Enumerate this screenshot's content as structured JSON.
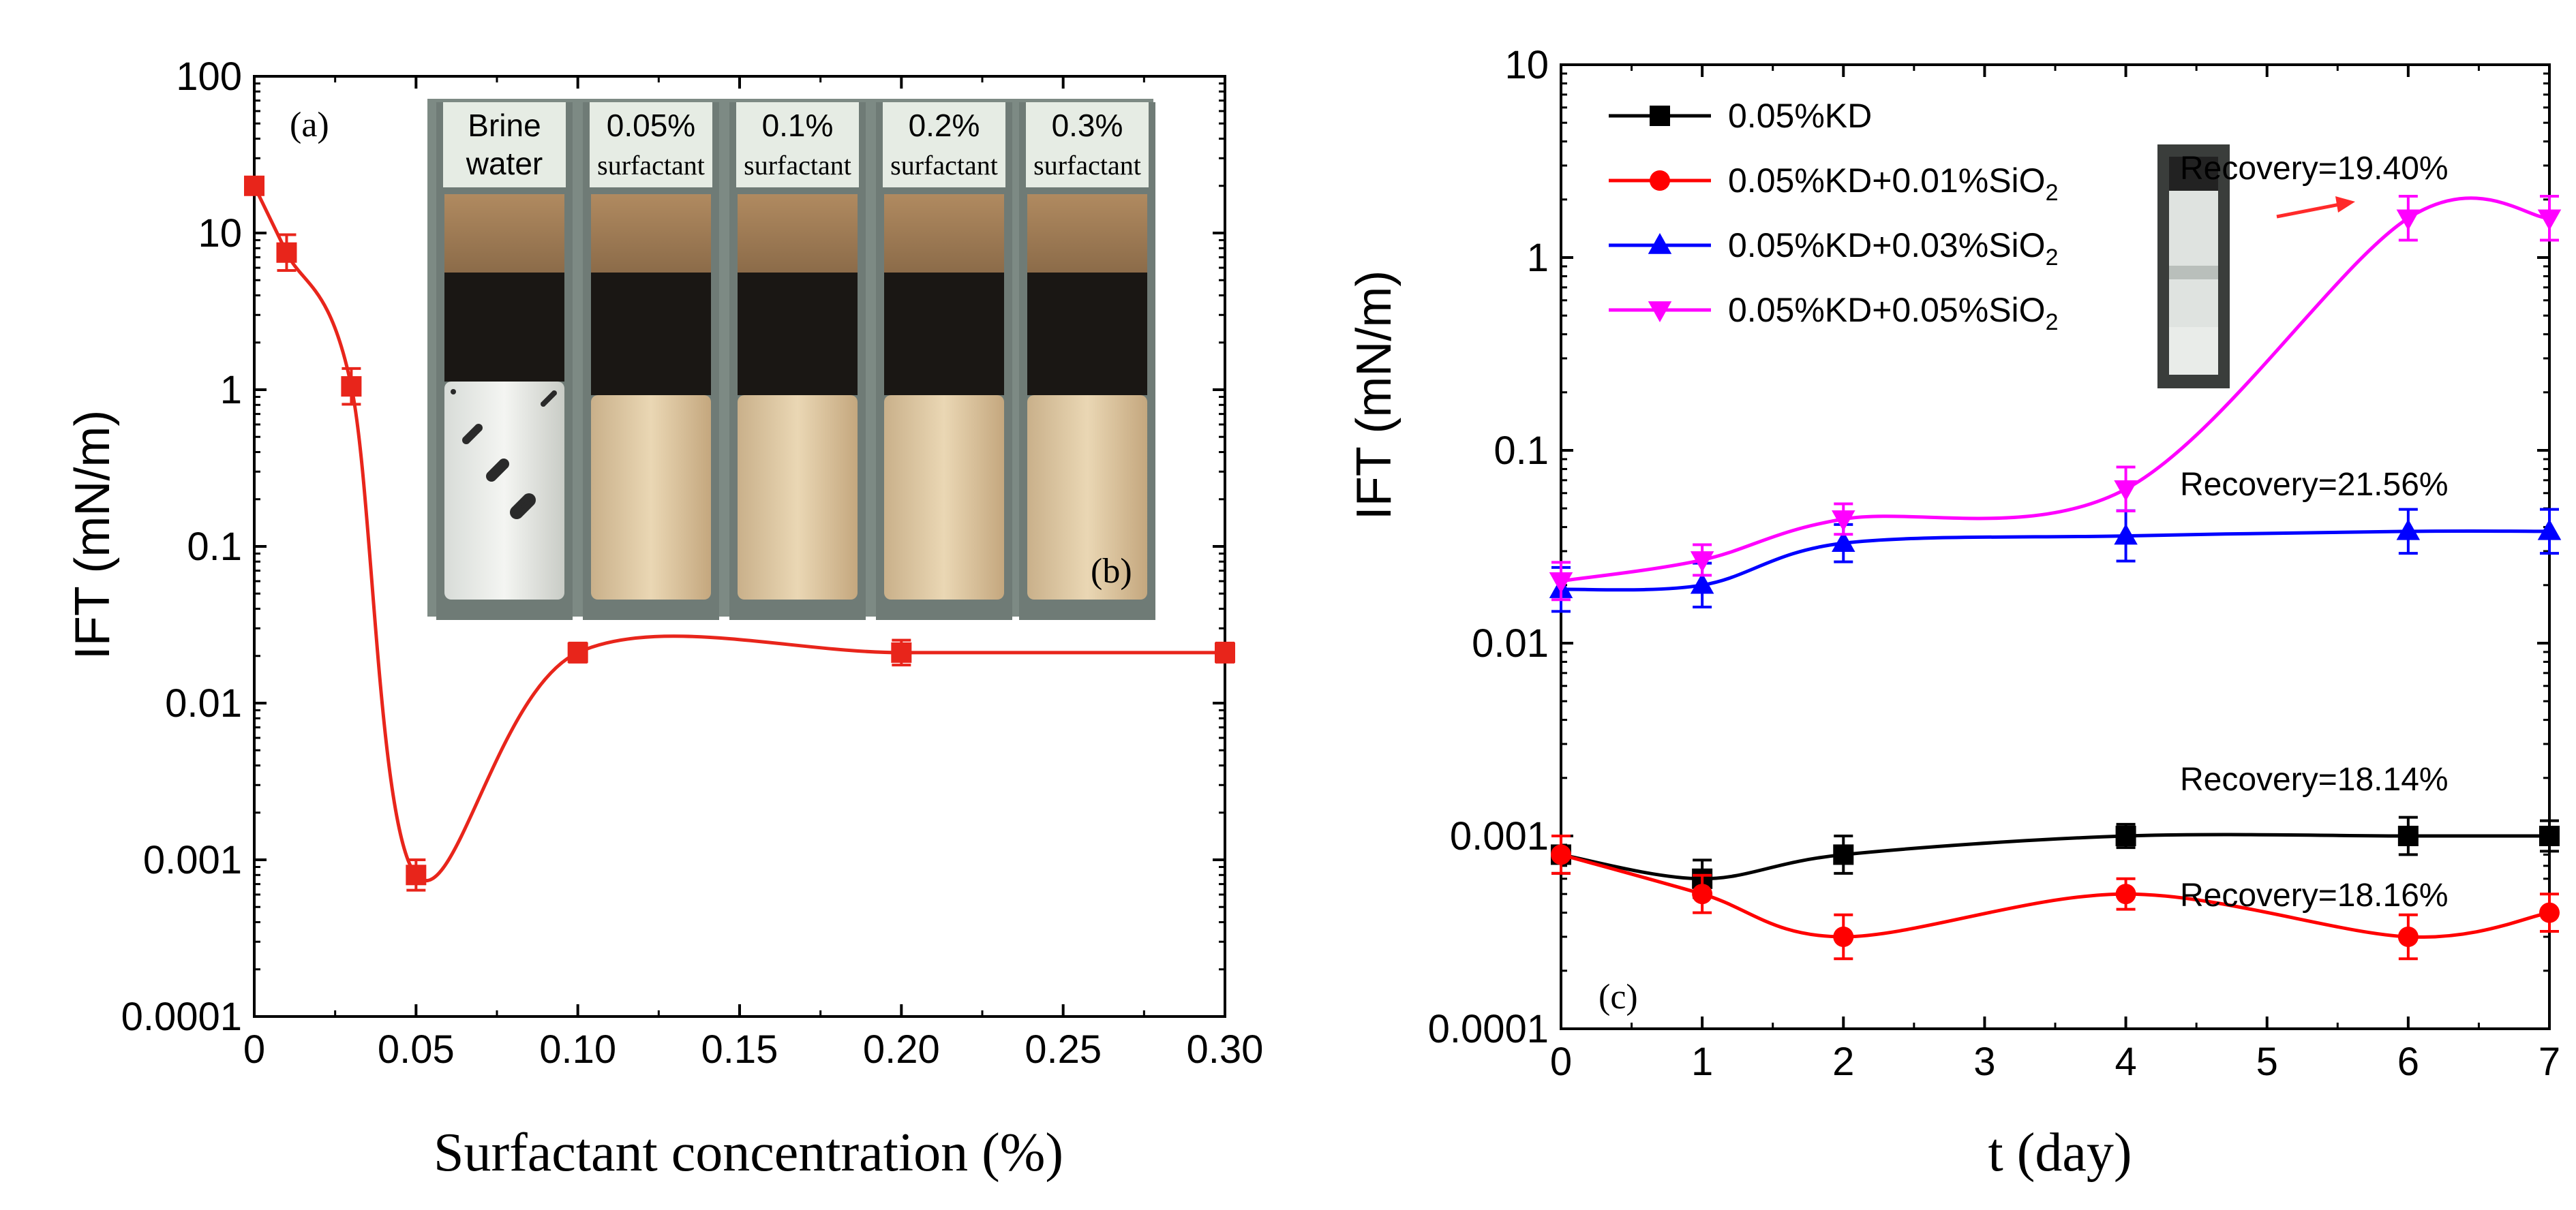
{
  "chart_data": [
    {
      "panel": "a",
      "type": "line",
      "panel_label": "(a)",
      "xlabel": "Surfactant concentration (%)",
      "ylabel": "IFT (mN/m)",
      "xlim": [
        0,
        0.3
      ],
      "ylim": [
        0.0001,
        100
      ],
      "yscale": "log",
      "x_ticks": [
        "0",
        "0.05",
        "0.10",
        "0.15",
        "0.20",
        "0.25",
        "0.30"
      ],
      "x_tick_values": [
        0,
        0.05,
        0.1,
        0.15,
        0.2,
        0.25,
        0.3
      ],
      "y_ticks": [
        "0.0001",
        "0.001",
        "0.01",
        "0.1",
        "1",
        "10",
        "100"
      ],
      "y_tick_values": [
        0.0001,
        0.001,
        0.01,
        0.1,
        1,
        10,
        100
      ],
      "series": [
        {
          "name": "IFT",
          "color": "#e8251b",
          "marker": "square",
          "x": [
            0,
            0.01,
            0.03,
            0.05,
            0.1,
            0.2,
            0.3
          ],
          "values": [
            20,
            7.5,
            1.05,
            0.0008,
            0.021,
            0.021,
            0.021
          ],
          "err_factor": [
            1.12,
            1.3,
            1.3,
            1.25,
            1.15,
            1.2,
            1.15
          ]
        }
      ],
      "inset": {
        "panel_label": "(b)",
        "vials": [
          {
            "line1": "Brine",
            "line2": "water"
          },
          {
            "line1": "0.05%",
            "line2": "surfactant"
          },
          {
            "line1": "0.1%",
            "line2": "surfactant"
          },
          {
            "line1": "0.2%",
            "line2": "surfactant"
          },
          {
            "line1": "0.3%",
            "line2": "surfactant"
          }
        ]
      }
    },
    {
      "panel": "c",
      "type": "line",
      "panel_label": "(c)",
      "xlabel": "t (day)",
      "ylabel": "IFT (mN/m)",
      "xlim": [
        0,
        7
      ],
      "ylim": [
        0.0001,
        10
      ],
      "yscale": "log",
      "x_ticks": [
        "0",
        "1",
        "2",
        "3",
        "4",
        "5",
        "6",
        "7"
      ],
      "x_tick_values": [
        0,
        1,
        2,
        3,
        4,
        5,
        6,
        7
      ],
      "y_ticks": [
        "0.0001",
        "0.001",
        "0.01",
        "0.1",
        "1",
        "10"
      ],
      "y_tick_values": [
        0.0001,
        0.001,
        0.01,
        0.1,
        1,
        10
      ],
      "legend_position": "top-left",
      "series": [
        {
          "name": "0.05%KD",
          "color": "#000000",
          "marker": "square",
          "x": [
            0,
            1,
            2,
            4,
            6,
            7
          ],
          "values": [
            0.0008,
            0.0006,
            0.0008,
            0.001,
            0.001,
            0.001
          ],
          "err_factor": [
            1.25,
            1.25,
            1.25,
            1.15,
            1.25,
            1.2
          ]
        },
        {
          "name": "0.05%KD+0.01%SiO",
          "name_sub": "2",
          "color": "#ff0000",
          "marker": "circle",
          "x": [
            0,
            1,
            2,
            4,
            6,
            7
          ],
          "values": [
            0.0008,
            0.0005,
            0.0003,
            0.0005,
            0.0003,
            0.0004
          ],
          "err_factor": [
            1.25,
            1.25,
            1.3,
            1.2,
            1.3,
            1.25
          ]
        },
        {
          "name": "0.05%KD+0.03%SiO",
          "name_sub": "2",
          "color": "#0000ff",
          "marker": "triangle-up",
          "x": [
            0,
            1,
            2,
            4,
            6,
            7
          ],
          "values": [
            0.019,
            0.02,
            0.033,
            0.036,
            0.038,
            0.038
          ],
          "err_factor": [
            1.3,
            1.3,
            1.25,
            1.35,
            1.3,
            1.3
          ]
        },
        {
          "name": "0.05%KD+0.05%SiO",
          "name_sub": "2",
          "color": "#ff00ff",
          "marker": "triangle-down",
          "x": [
            0,
            1,
            2,
            4,
            6,
            7
          ],
          "values": [
            0.021,
            0.027,
            0.044,
            0.063,
            1.6,
            1.6
          ],
          "err_factor": [
            1.25,
            1.2,
            1.2,
            1.3,
            1.3,
            1.3
          ]
        }
      ],
      "annotations": [
        {
          "text": "Recovery=19.40%"
        },
        {
          "text": "Recovery=21.56%"
        },
        {
          "text": "Recovery=18.14%"
        },
        {
          "text": "Recovery=18.16%"
        }
      ]
    }
  ]
}
